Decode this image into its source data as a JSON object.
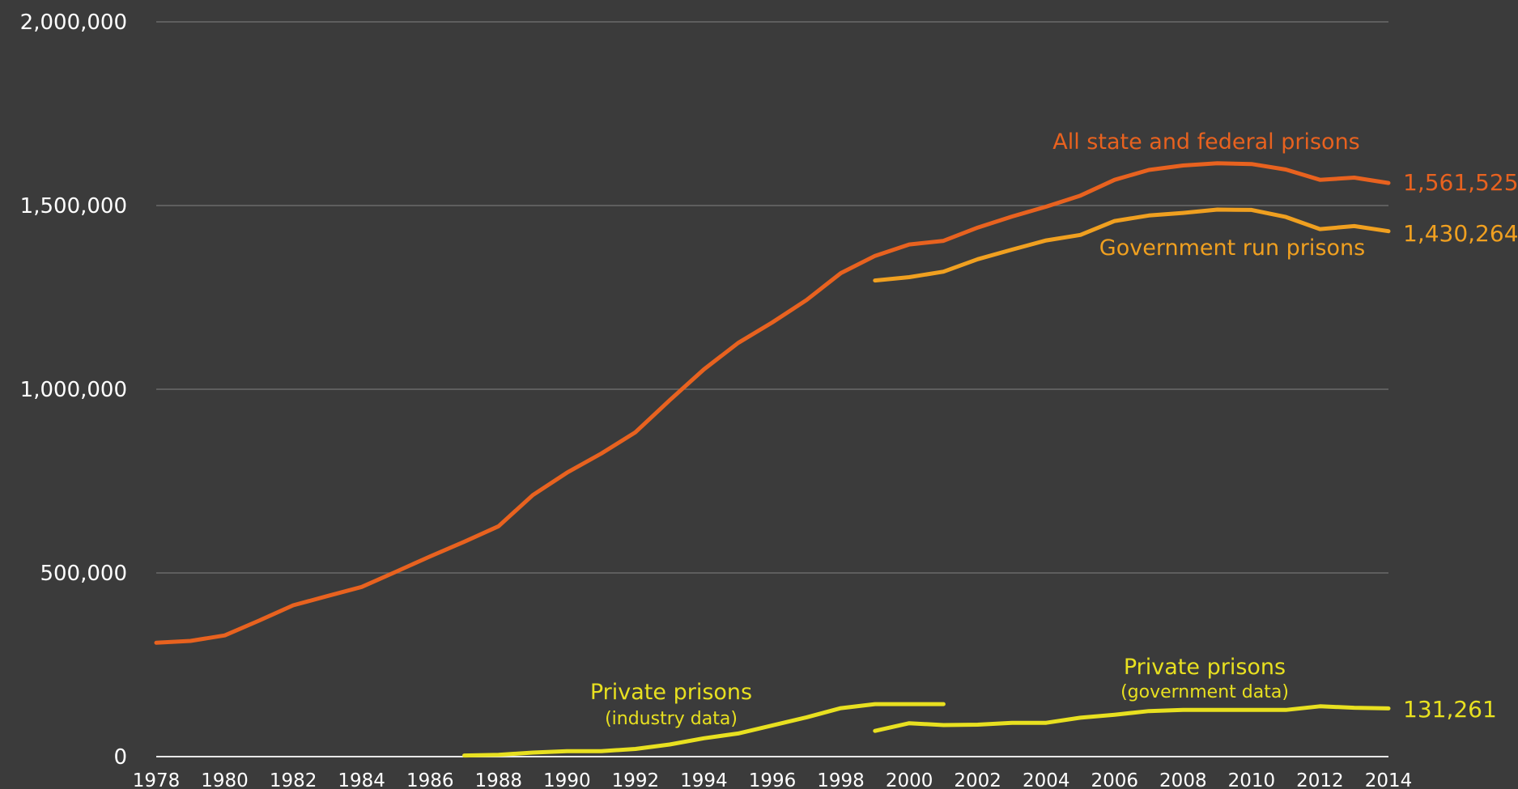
{
  "chart_data": {
    "type": "line",
    "xlim": [
      1978,
      2014
    ],
    "ylim": [
      0,
      2000000
    ],
    "y_ticks": [
      0,
      500000,
      1000000,
      1500000,
      2000000
    ],
    "y_tick_labels": [
      "0",
      "500,000",
      "1,000,000",
      "1,500,000",
      "2,000,000"
    ],
    "x_ticks": [
      1978,
      1980,
      1982,
      1984,
      1986,
      1988,
      1990,
      1992,
      1994,
      1996,
      1998,
      2000,
      2002,
      2004,
      2006,
      2008,
      2010,
      2012,
      2014
    ],
    "x_tick_labels": [
      "1978",
      "1980",
      "1982",
      "1984",
      "1986",
      "1988",
      "1990",
      "1992",
      "1994",
      "1996",
      "1998",
      "2000",
      "2002",
      "2004",
      "2006",
      "2008",
      "2010",
      "2012",
      "2014"
    ],
    "grid": true,
    "series": [
      {
        "name": "All state and federal prisons",
        "color": "#e8621f",
        "end_label": "1,561,525",
        "x": [
          1978,
          1979,
          1980,
          1981,
          1982,
          1983,
          1984,
          1985,
          1986,
          1987,
          1988,
          1989,
          1990,
          1991,
          1992,
          1993,
          1994,
          1995,
          1996,
          1997,
          1998,
          1999,
          2000,
          2001,
          2002,
          2003,
          2004,
          2005,
          2006,
          2007,
          2008,
          2009,
          2010,
          2011,
          2012,
          2013,
          2014
        ],
        "values": [
          310000,
          315000,
          330000,
          370000,
          412000,
          437000,
          462000,
          503000,
          545000,
          585000,
          627000,
          712000,
          773000,
          825000,
          883000,
          970000,
          1054000,
          1126000,
          1182000,
          1243000,
          1316000,
          1363000,
          1394000,
          1404000,
          1440000,
          1470000,
          1497000,
          1527000,
          1570000,
          1597000,
          1609000,
          1615000,
          1613000,
          1598000,
          1570000,
          1576000,
          1561525
        ]
      },
      {
        "name": "Government run prisons",
        "color": "#f0a020",
        "end_label": "1,430,264",
        "x": [
          1999,
          2000,
          2001,
          2002,
          2003,
          2004,
          2005,
          2006,
          2007,
          2008,
          2009,
          2010,
          2011,
          2012,
          2013,
          2014
        ],
        "values": [
          1296000,
          1305000,
          1320000,
          1354000,
          1380000,
          1405000,
          1420000,
          1458000,
          1473000,
          1480000,
          1489000,
          1488000,
          1469000,
          1436000,
          1444000,
          1430264
        ]
      },
      {
        "name": "Private prisons",
        "subtitle": "(industry data)",
        "color": "#e8e020",
        "x": [
          1987,
          1988,
          1989,
          1990,
          1991,
          1992,
          1993,
          1994,
          1995,
          1996,
          1997,
          1998,
          1999,
          2000,
          2001
        ],
        "values": [
          3000,
          5000,
          11000,
          15000,
          15000,
          21000,
          33000,
          50000,
          63000,
          85000,
          107000,
          132000,
          143000,
          143000,
          143000
        ]
      },
      {
        "name": "Private prisons",
        "subtitle": "(government data)",
        "color": "#e8e020",
        "end_label": "131,261",
        "x": [
          1999,
          2000,
          2001,
          2002,
          2003,
          2004,
          2005,
          2006,
          2007,
          2008,
          2009,
          2010,
          2011,
          2012,
          2013,
          2014
        ],
        "values": [
          70000,
          91000,
          86000,
          87000,
          92000,
          92000,
          106000,
          114000,
          124000,
          127000,
          127000,
          127000,
          127000,
          137000,
          133000,
          131261
        ]
      }
    ]
  }
}
